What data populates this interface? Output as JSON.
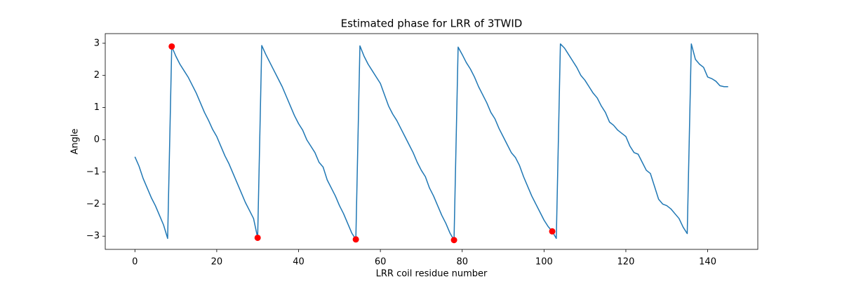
{
  "chart_data": {
    "type": "line",
    "title": "Estimated phase for LRR of 3TWID",
    "xlabel": "LRR coil residue number",
    "ylabel": "Angle",
    "xlim": [
      -7.25,
      152.25
    ],
    "ylim": [
      -3.41,
      3.3
    ],
    "xticks": [
      0,
      20,
      40,
      60,
      80,
      100,
      120,
      140
    ],
    "yticks": [
      {
        "value": -3,
        "label": "−3"
      },
      {
        "value": -2,
        "label": "−2"
      },
      {
        "value": -1,
        "label": "−1"
      },
      0,
      1,
      2,
      3
    ],
    "series": [
      {
        "type": "line",
        "color": "#1f77b4",
        "x": [
          0,
          1,
          2,
          3,
          4,
          5,
          6,
          7,
          8,
          9,
          10,
          11,
          12,
          13,
          14,
          15,
          16,
          17,
          18,
          19,
          20,
          21,
          22,
          23,
          24,
          25,
          26,
          27,
          28,
          29,
          30,
          31,
          32,
          33,
          34,
          35,
          36,
          37,
          38,
          39,
          40,
          41,
          42,
          43,
          44,
          45,
          46,
          47,
          48,
          49,
          50,
          51,
          52,
          53,
          54,
          55,
          56,
          57,
          58,
          59,
          60,
          61,
          62,
          63,
          64,
          65,
          66,
          67,
          68,
          69,
          70,
          71,
          72,
          73,
          74,
          75,
          76,
          77,
          78,
          79,
          80,
          81,
          82,
          83,
          84,
          85,
          86,
          87,
          88,
          89,
          90,
          91,
          92,
          93,
          94,
          95,
          96,
          97,
          98,
          99,
          100,
          101,
          102,
          103,
          104,
          105,
          106,
          107,
          108,
          109,
          110,
          111,
          112,
          113,
          114,
          115,
          116,
          117,
          118,
          119,
          120,
          121,
          122,
          123,
          124,
          125,
          126,
          127,
          128,
          129,
          130,
          131,
          132,
          133,
          134,
          135,
          136,
          137,
          138,
          139,
          140,
          141,
          142,
          143,
          144,
          145
        ],
        "values": [
          -0.53,
          -0.82,
          -1.2,
          -1.5,
          -1.8,
          -2.05,
          -2.35,
          -2.65,
          -3.07,
          2.9,
          2.6,
          2.35,
          2.15,
          1.95,
          1.7,
          1.45,
          1.15,
          0.85,
          0.6,
          0.32,
          0.1,
          -0.2,
          -0.5,
          -0.75,
          -1.05,
          -1.35,
          -1.65,
          -1.95,
          -2.2,
          -2.45,
          -3.05,
          2.93,
          2.65,
          2.4,
          2.15,
          1.9,
          1.65,
          1.35,
          1.05,
          0.75,
          0.5,
          0.3,
          0.0,
          -0.2,
          -0.4,
          -0.7,
          -0.85,
          -1.25,
          -1.5,
          -1.75,
          -2.05,
          -2.3,
          -2.6,
          -2.9,
          -3.1,
          2.92,
          2.6,
          2.35,
          2.15,
          1.95,
          1.75,
          1.4,
          1.05,
          0.8,
          0.6,
          0.35,
          0.1,
          -0.15,
          -0.4,
          -0.7,
          -0.95,
          -1.15,
          -1.5,
          -1.75,
          -2.05,
          -2.35,
          -2.6,
          -2.9,
          -3.12,
          2.88,
          2.65,
          2.4,
          2.2,
          1.95,
          1.65,
          1.4,
          1.15,
          0.85,
          0.65,
          0.35,
          0.1,
          -0.15,
          -0.4,
          -0.55,
          -0.8,
          -1.15,
          -1.45,
          -1.75,
          -2.0,
          -2.25,
          -2.5,
          -2.7,
          -2.85,
          -3.07,
          2.98,
          2.85,
          2.65,
          2.45,
          2.25,
          2.0,
          1.85,
          1.65,
          1.45,
          1.3,
          1.05,
          0.85,
          0.55,
          0.45,
          0.3,
          0.2,
          0.1,
          -0.2,
          -0.4,
          -0.45,
          -0.7,
          -0.95,
          -1.05,
          -1.45,
          -1.85,
          -2.0,
          -2.05,
          -2.15,
          -2.3,
          -2.45,
          -2.72,
          -2.92,
          2.98,
          2.5,
          2.35,
          2.25,
          1.95,
          1.9,
          1.82,
          1.68,
          1.65,
          1.65
        ]
      },
      {
        "type": "scatter",
        "color": "#ff0000",
        "x": [
          9,
          30,
          54,
          78,
          102
        ],
        "values": [
          2.9,
          -3.05,
          -3.1,
          -3.12,
          -2.85
        ]
      }
    ]
  }
}
